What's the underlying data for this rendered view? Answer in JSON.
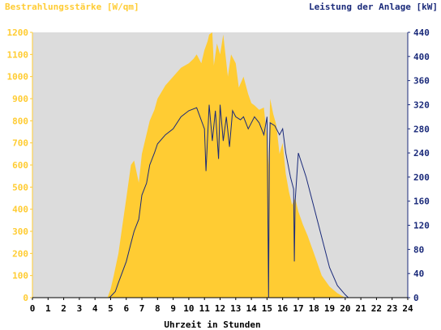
{
  "chart_data": {
    "type": "area",
    "title_left": "Bestrahlungsstärke [W/qm]",
    "title_right": "Leistung der Anlage [kW]",
    "xlabel": "Uhrzeit in Stunden",
    "xlim": [
      0,
      24
    ],
    "x_ticks": [
      "0",
      "1",
      "2",
      "3",
      "4",
      "5",
      "6",
      "7",
      "8",
      "9",
      "10",
      "11",
      "12",
      "13",
      "14",
      "15",
      "16",
      "17",
      "18",
      "19",
      "20",
      "21",
      "22",
      "23",
      "24"
    ],
    "ylim_left": [
      0,
      1200
    ],
    "y_ticks_left": [
      "0",
      "100",
      "200",
      "300",
      "400",
      "500",
      "600",
      "700",
      "800",
      "900",
      "1000",
      "1100",
      "1200"
    ],
    "ylim_right": [
      0,
      440
    ],
    "y_ticks_right": [
      "0",
      "40",
      "80",
      "120",
      "160",
      "200",
      "240",
      "280",
      "320",
      "360",
      "400",
      "440"
    ],
    "grid": false,
    "colors": {
      "plot_bg": "#dcdcdc",
      "irradiance_fill": "#ffcc33",
      "power_line": "#1a2a7a",
      "left_axis": "#ffcc33",
      "right_axis": "#1a2a7a",
      "bottom_axis": "#000000"
    },
    "series": [
      {
        "axis": "left",
        "x": [
          0,
          4.8,
          5.0,
          5.2,
          5.5,
          5.8,
          6.0,
          6.3,
          6.5,
          6.8,
          7.0,
          7.3,
          7.5,
          7.8,
          8.0,
          8.5,
          9.0,
          9.5,
          10.0,
          10.3,
          10.5,
          10.8,
          11.0,
          11.2,
          11.3,
          11.5,
          11.6,
          11.8,
          12.0,
          12.2,
          12.5,
          12.7,
          13.0,
          13.2,
          13.5,
          13.8,
          14.0,
          14.2,
          14.5,
          14.8,
          15.0,
          15.1,
          15.2,
          15.4,
          15.6,
          15.8,
          16.0,
          16.2,
          16.4,
          16.6,
          16.8,
          17.0,
          17.3,
          17.6,
          18.0,
          18.5,
          19.0,
          19.5,
          20.0,
          20.3,
          24
        ],
        "y": [
          0,
          0,
          40,
          100,
          200,
          350,
          450,
          600,
          620,
          520,
          650,
          740,
          800,
          850,
          900,
          960,
          1000,
          1040,
          1060,
          1080,
          1100,
          1060,
          1120,
          1160,
          1190,
          1200,
          1050,
          1150,
          1100,
          1190,
          1000,
          1100,
          1060,
          950,
          1000,
          920,
          880,
          870,
          850,
          860,
          720,
          600,
          900,
          830,
          780,
          650,
          700,
          560,
          480,
          420,
          450,
          390,
          330,
          280,
          200,
          100,
          50,
          20,
          0,
          0,
          0
        ]
      },
      {
        "axis": "right",
        "x": [
          0,
          4.9,
          5.0,
          5.3,
          5.5,
          6.0,
          6.3,
          6.5,
          6.8,
          7.0,
          7.3,
          7.5,
          7.8,
          8.0,
          8.5,
          9.0,
          9.5,
          10.0,
          10.5,
          11.0,
          11.1,
          11.3,
          11.5,
          11.7,
          11.9,
          12.0,
          12.2,
          12.4,
          12.6,
          12.8,
          13.0,
          13.3,
          13.5,
          13.8,
          14.0,
          14.2,
          14.5,
          14.8,
          15.0,
          15.1,
          15.15,
          15.2,
          15.5,
          15.8,
          16.0,
          16.2,
          16.5,
          16.7,
          16.75,
          16.8,
          17.0,
          17.5,
          18.0,
          18.5,
          19.0,
          19.5,
          20.0,
          20.2,
          24
        ],
        "y": [
          0,
          0,
          2,
          10,
          25,
          60,
          90,
          110,
          130,
          170,
          190,
          220,
          240,
          255,
          270,
          280,
          300,
          310,
          315,
          280,
          210,
          320,
          260,
          310,
          230,
          320,
          260,
          300,
          250,
          310,
          300,
          295,
          300,
          280,
          290,
          300,
          290,
          270,
          300,
          0,
          240,
          290,
          285,
          270,
          280,
          240,
          200,
          180,
          60,
          160,
          240,
          200,
          150,
          100,
          50,
          20,
          5,
          0,
          0
        ]
      }
    ]
  }
}
